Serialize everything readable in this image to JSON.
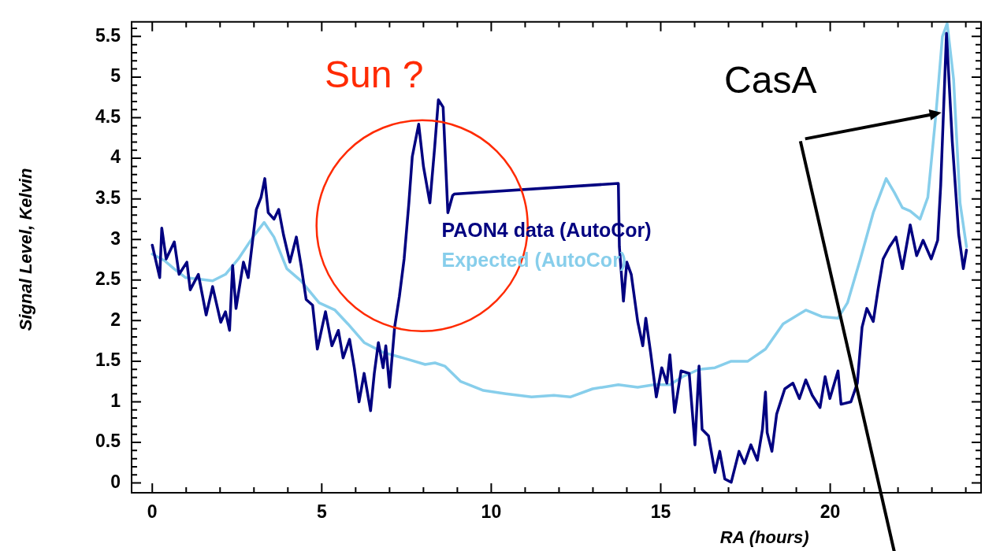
{
  "chart_data": {
    "type": "line",
    "xlabel": "RA (hours)",
    "ylabel": "Signal Level, Kelvin",
    "xlim": [
      -0.61,
      24.45
    ],
    "ylim": [
      -0.12,
      5.68
    ],
    "xticks": [
      0,
      {
        "value": 1,
        "label": null
      },
      {
        "value": 2,
        "label": null
      },
      {
        "value": 3,
        "label": null
      },
      {
        "value": 4,
        "label": null
      },
      5,
      {
        "value": 6,
        "label": null
      },
      {
        "value": 7,
        "label": null
      },
      {
        "value": 8,
        "label": null
      },
      {
        "value": 9,
        "label": null
      },
      10,
      {
        "value": 11,
        "label": null
      },
      {
        "value": 12,
        "label": null
      },
      {
        "value": 13,
        "label": null
      },
      {
        "value": 14,
        "label": null
      },
      15,
      {
        "value": 16,
        "label": null
      },
      {
        "value": 17,
        "label": null
      },
      {
        "value": 18,
        "label": null
      },
      {
        "value": 19,
        "label": null
      },
      20,
      {
        "value": 21,
        "label": null
      },
      {
        "value": 22,
        "label": null
      },
      {
        "value": 23,
        "label": null
      },
      {
        "value": 24,
        "label": null
      }
    ],
    "yticks": [
      0,
      {
        "value": 0.1,
        "label": null
      },
      {
        "value": 0.2,
        "label": null
      },
      {
        "value": 0.3,
        "label": null
      },
      {
        "value": 0.4,
        "label": null
      },
      0.5,
      {
        "value": 0.6,
        "label": null
      },
      {
        "value": 0.7,
        "label": null
      },
      {
        "value": 0.8,
        "label": null
      },
      {
        "value": 0.9,
        "label": null
      },
      1,
      {
        "value": 1.1,
        "label": null
      },
      {
        "value": 1.2,
        "label": null
      },
      {
        "value": 1.3,
        "label": null
      },
      {
        "value": 1.4,
        "label": null
      },
      1.5,
      {
        "value": 1.6,
        "label": null
      },
      {
        "value": 1.7,
        "label": null
      },
      {
        "value": 1.8,
        "label": null
      },
      {
        "value": 1.9,
        "label": null
      },
      2,
      {
        "value": 2.1,
        "label": null
      },
      {
        "value": 2.2,
        "label": null
      },
      {
        "value": 2.3,
        "label": null
      },
      {
        "value": 2.4,
        "label": null
      },
      2.5,
      {
        "value": 2.6,
        "label": null
      },
      {
        "value": 2.7,
        "label": null
      },
      {
        "value": 2.8,
        "label": null
      },
      {
        "value": 2.9,
        "label": null
      },
      3,
      {
        "value": 3.1,
        "label": null
      },
      {
        "value": 3.2,
        "label": null
      },
      {
        "value": 3.3,
        "label": null
      },
      {
        "value": 3.4,
        "label": null
      },
      3.5,
      {
        "value": 3.6,
        "label": null
      },
      {
        "value": 3.7,
        "label": null
      },
      {
        "value": 3.8,
        "label": null
      },
      {
        "value": 3.9,
        "label": null
      },
      4,
      {
        "value": 4.1,
        "label": null
      },
      {
        "value": 4.2,
        "label": null
      },
      {
        "value": 4.3,
        "label": null
      },
      {
        "value": 4.4,
        "label": null
      },
      4.5,
      {
        "value": 4.6,
        "label": null
      },
      {
        "value": 4.7,
        "label": null
      },
      {
        "value": 4.8,
        "label": null
      },
      {
        "value": 4.9,
        "label": null
      },
      5,
      {
        "value": 5.1,
        "label": null
      },
      {
        "value": 5.2,
        "label": null
      },
      {
        "value": 5.3,
        "label": null
      },
      {
        "value": 5.4,
        "label": null
      },
      5.5,
      {
        "value": 5.6,
        "label": null
      }
    ],
    "grid": false,
    "legend": "center",
    "marker": "none",
    "line_style": "solid",
    "series": [
      {
        "name": "PAON4 data (AutoCor)",
        "color": "#000080",
        "x": [
          0,
          0.22,
          0.28,
          0.41,
          0.65,
          0.79,
          1.02,
          1.12,
          1.36,
          1.59,
          1.78,
          2.02,
          2.16,
          2.28,
          2.37,
          2.47,
          2.69,
          2.83,
          3.07,
          3.21,
          3.32,
          3.42,
          3.59,
          3.73,
          3.87,
          4.06,
          4.25,
          4.39,
          4.54,
          4.73,
          4.87,
          5.11,
          5.3,
          5.49,
          5.63,
          5.82,
          5.96,
          6.1,
          6.25,
          6.44,
          6.55,
          6.67,
          6.81,
          6.89,
          7,
          7.15,
          7.29,
          7.43,
          7.57,
          7.67,
          7.86,
          8,
          8.19,
          8.33,
          8.44,
          8.58,
          8.72,
          8.86,
          8.91,
          13.75,
          13.78,
          13.9,
          14,
          14.13,
          14.32,
          14.47,
          14.56,
          14.7,
          14.87,
          15.03,
          15.18,
          15.27,
          15.41,
          15.6,
          15.84,
          16.01,
          16.13,
          16.22,
          16.41,
          16.6,
          16.74,
          16.89,
          17.08,
          17.31,
          17.47,
          17.66,
          17.85,
          18,
          18.09,
          18.14,
          18.28,
          18.42,
          18.66,
          18.9,
          19.09,
          19.28,
          19.47,
          19.7,
          19.85,
          19.99,
          20.23,
          20.32,
          20.61,
          20.8,
          20.94,
          21.08,
          21.27,
          21.41,
          21.56,
          21.75,
          21.94,
          22.13,
          22.36,
          22.55,
          22.74,
          22.98,
          23.17,
          23.26,
          23.43,
          23.6,
          23.79,
          23.93,
          24.02
        ],
        "values": [
          2.93,
          2.53,
          3.14,
          2.76,
          2.97,
          2.57,
          2.72,
          2.38,
          2.57,
          2.07,
          2.42,
          1.98,
          2.11,
          1.88,
          2.68,
          2.15,
          2.72,
          2.53,
          3.37,
          3.52,
          3.75,
          3.33,
          3.25,
          3.37,
          3.06,
          2.72,
          3.03,
          2.68,
          2.26,
          2.19,
          1.65,
          2.11,
          1.69,
          1.88,
          1.54,
          1.77,
          1.42,
          1,
          1.35,
          0.89,
          1.35,
          1.73,
          1.42,
          1.69,
          1.18,
          1.92,
          2.3,
          2.76,
          3.45,
          4.02,
          4.42,
          3.9,
          3.45,
          4.13,
          4.72,
          4.63,
          3.33,
          3.54,
          3.56,
          3.69,
          2.91,
          2.24,
          2.72,
          2.57,
          1.99,
          1.69,
          2.03,
          1.61,
          1.06,
          1.42,
          1.23,
          1.58,
          0.87,
          1.38,
          1.35,
          0.47,
          1.44,
          0.66,
          0.58,
          0.13,
          0.39,
          0.05,
          0.01,
          0.39,
          0.24,
          0.47,
          0.28,
          0.66,
          1.12,
          0.62,
          0.39,
          0.85,
          1.16,
          1.23,
          1.04,
          1.27,
          1.08,
          0.93,
          1.31,
          1.04,
          1.38,
          0.97,
          1,
          1.23,
          1.92,
          2.15,
          1.99,
          2.38,
          2.76,
          2.91,
          3.03,
          2.64,
          3.18,
          2.8,
          2.99,
          2.76,
          2.99,
          3.67,
          5.54,
          4.21,
          3.06,
          2.64,
          2.87
        ]
      },
      {
        "name": "Expected (AutoCor)",
        "color": "#87ceeb",
        "x": [
          0,
          0.36,
          0.64,
          0.98,
          1.4,
          1.78,
          2.16,
          2.54,
          2.97,
          3.3,
          3.59,
          3.97,
          4.39,
          4.92,
          5.39,
          5.77,
          6.25,
          6.81,
          7.57,
          8.05,
          8.34,
          8.63,
          9.1,
          9.77,
          10.43,
          11.19,
          11.85,
          12.33,
          12.99,
          13.75,
          14.32,
          14.8,
          15.27,
          15.65,
          16.13,
          16.6,
          17.08,
          17.57,
          18.09,
          18.61,
          19.28,
          19.75,
          20.23,
          20.51,
          20.89,
          21.27,
          21.65,
          21.89,
          22.13,
          22.36,
          22.65,
          22.88,
          23.12,
          23.31,
          23.45,
          23.64,
          23.83,
          24.02
        ],
        "values": [
          2.82,
          2.74,
          2.64,
          2.53,
          2.51,
          2.49,
          2.57,
          2.76,
          3.03,
          3.21,
          3.03,
          2.64,
          2.49,
          2.22,
          2.13,
          1.96,
          1.73,
          1.61,
          1.52,
          1.46,
          1.48,
          1.44,
          1.25,
          1.14,
          1.1,
          1.06,
          1.08,
          1.06,
          1.16,
          1.21,
          1.18,
          1.21,
          1.21,
          1.31,
          1.4,
          1.42,
          1.5,
          1.5,
          1.65,
          1.96,
          2.13,
          2.05,
          2.03,
          2.22,
          2.76,
          3.33,
          3.75,
          3.58,
          3.39,
          3.35,
          3.25,
          3.52,
          4.55,
          5.5,
          5.66,
          4.97,
          3.45,
          2.91
        ]
      }
    ],
    "annotations": [
      "Sun ?",
      {
        "text": "CasA",
        "x": 23.12,
        "y": 4.55
      }
    ]
  }
}
